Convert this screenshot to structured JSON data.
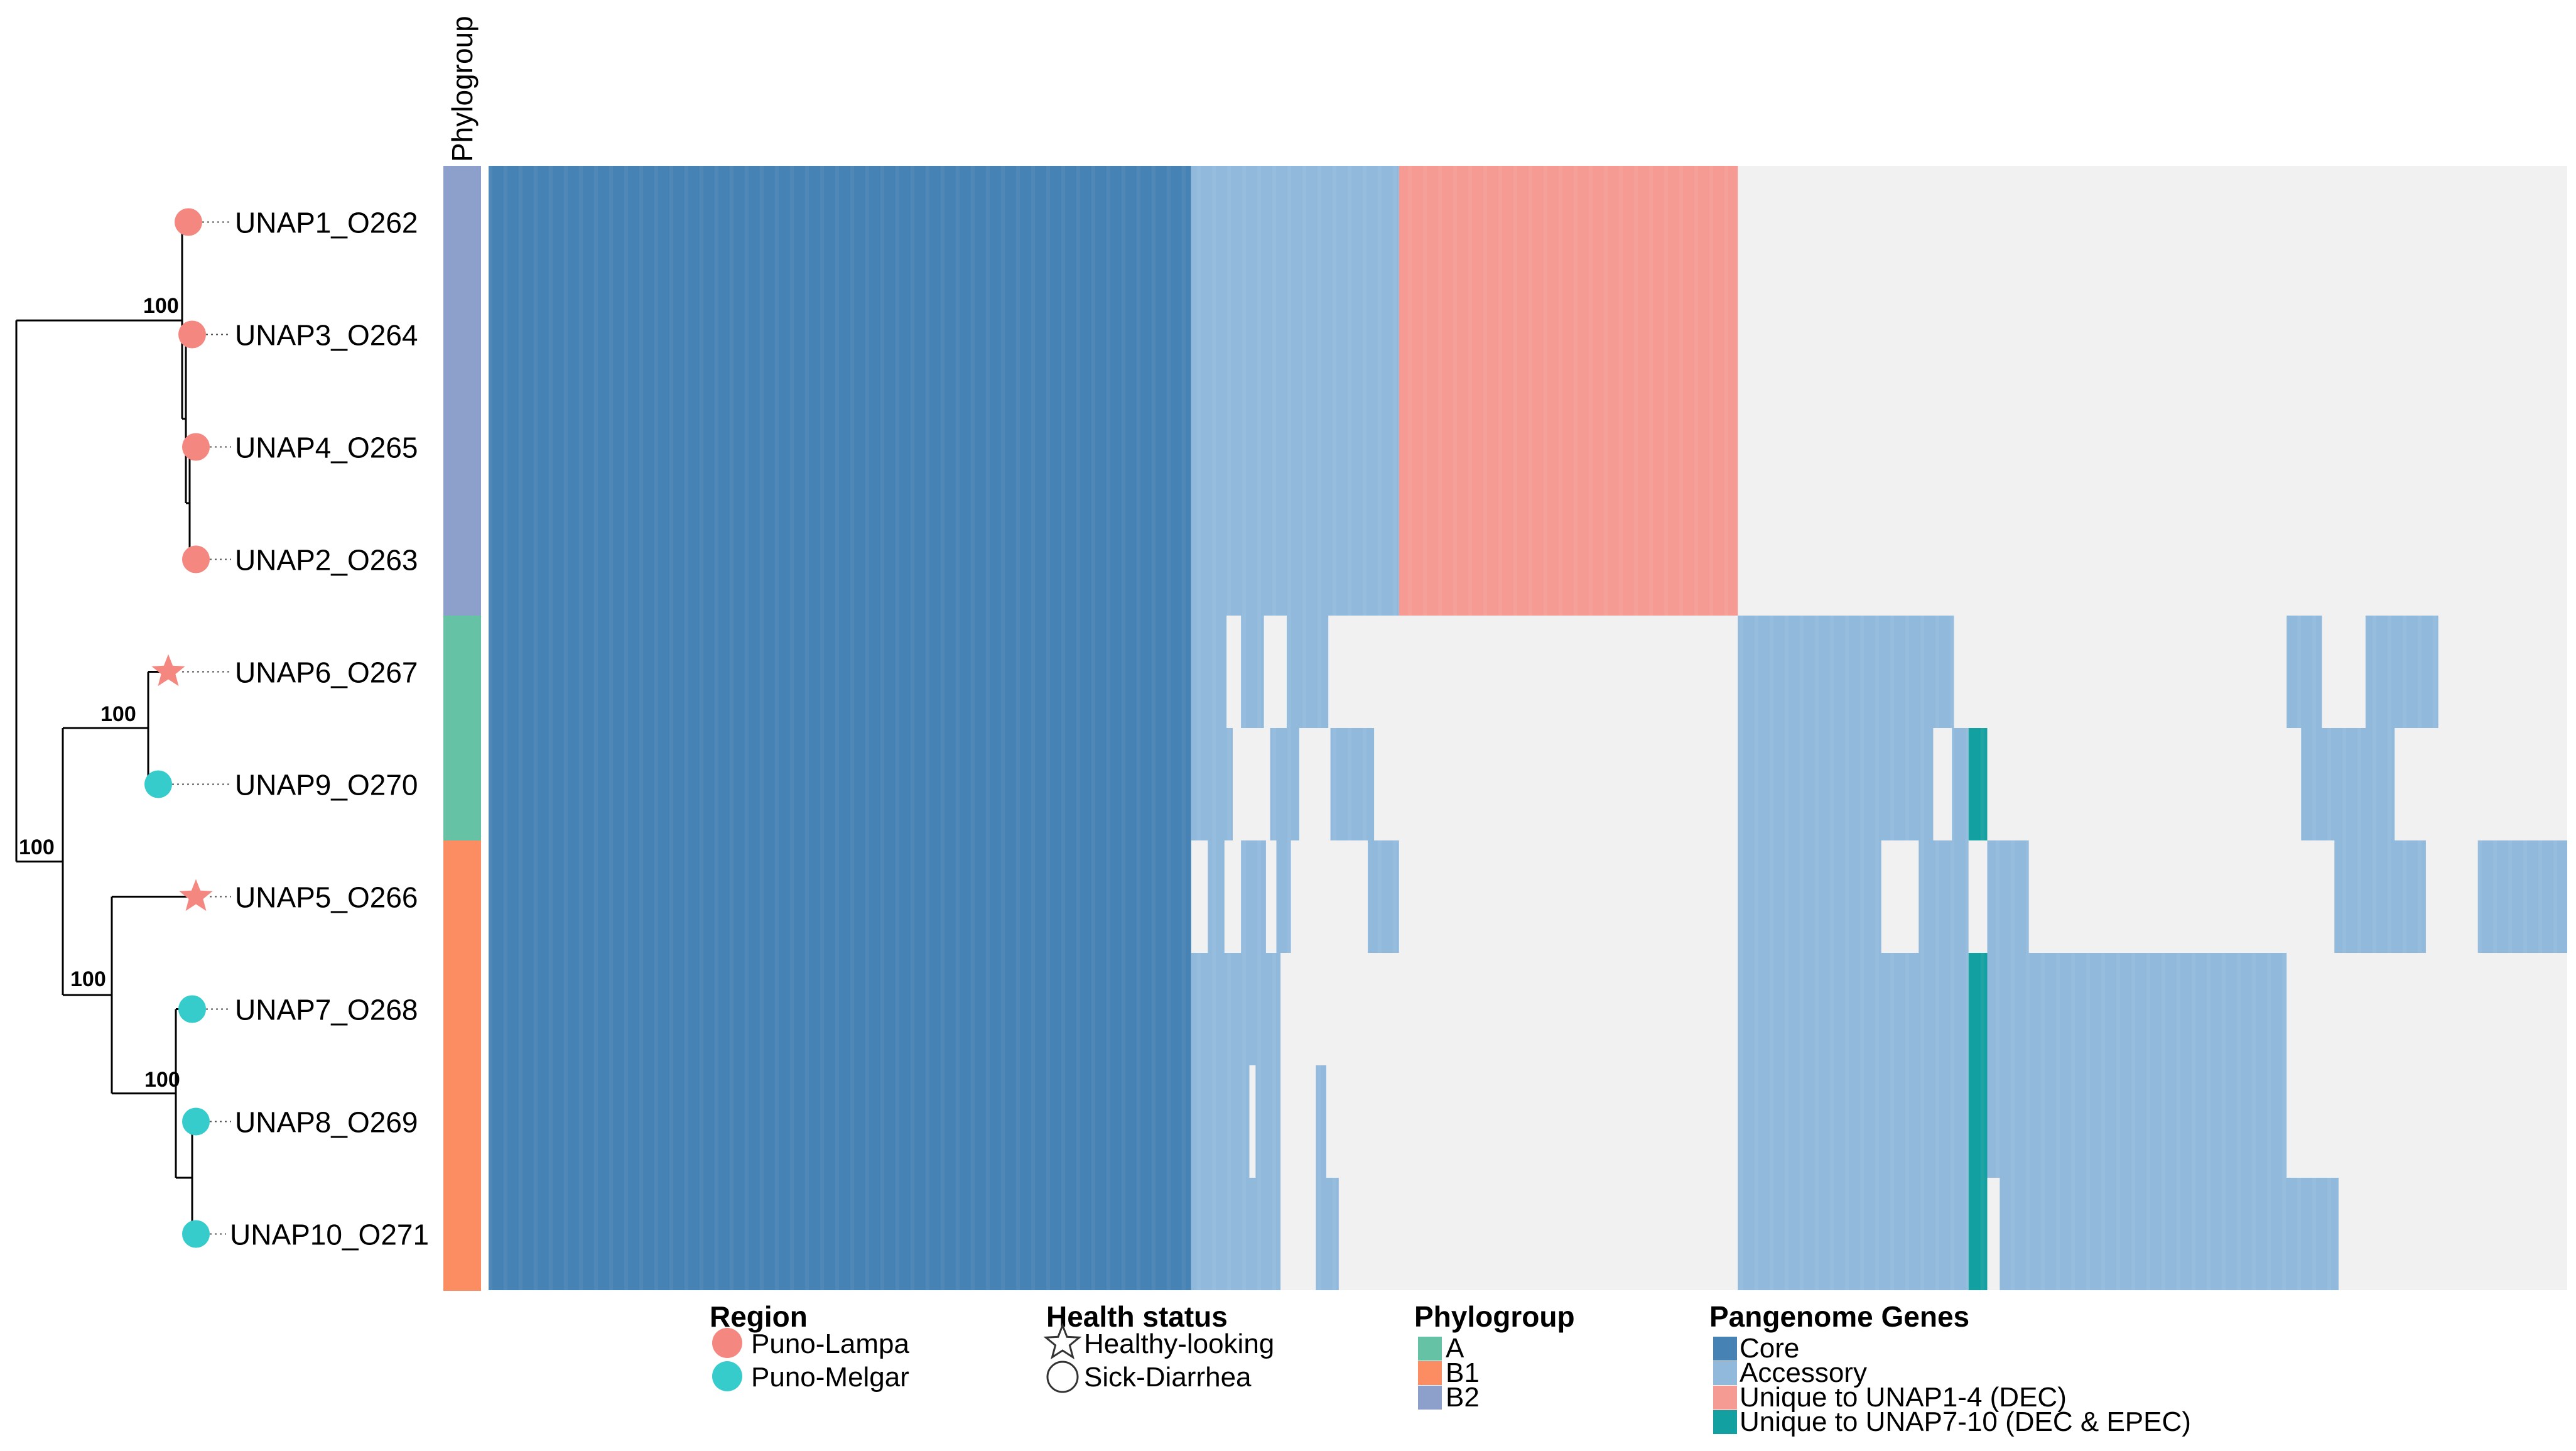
{
  "chart_data": {
    "type": "heatmap",
    "title": "",
    "strip_title": "Phylogroup",
    "bootstrap_value": "100",
    "colors": {
      "core": "#4682b4",
      "accessory": "#91b9dc",
      "unique_1_4": "#f59b93",
      "unique_7_10": "#13a0a0",
      "absent": "#f1f1f1",
      "region_lampa": "#f4877f",
      "region_melgar": "#36cccc",
      "phylo_A": "#66c2a5",
      "phylo_B1": "#fc8d62",
      "phylo_B2": "#8da0cb",
      "tree": "#000000"
    },
    "strains": [
      {
        "label": "UNAP1_O262",
        "region": "Puno-Lampa",
        "health": "Sick-Diarrhea",
        "phylogroup": "B2"
      },
      {
        "label": "UNAP3_O264",
        "region": "Puno-Lampa",
        "health": "Sick-Diarrhea",
        "phylogroup": "B2"
      },
      {
        "label": "UNAP4_O265",
        "region": "Puno-Lampa",
        "health": "Sick-Diarrhea",
        "phylogroup": "B2"
      },
      {
        "label": "UNAP2_O263",
        "region": "Puno-Lampa",
        "health": "Sick-Diarrhea",
        "phylogroup": "B2"
      },
      {
        "label": "UNAP6_O267",
        "region": "Puno-Lampa",
        "health": "Healthy-looking",
        "phylogroup": "A"
      },
      {
        "label": "UNAP9_O270",
        "region": "Puno-Melgar",
        "health": "Sick-Diarrhea",
        "phylogroup": "A"
      },
      {
        "label": "UNAP5_O266",
        "region": "Puno-Lampa",
        "health": "Healthy-looking",
        "phylogroup": "B1"
      },
      {
        "label": "UNAP7_O268",
        "region": "Puno-Melgar",
        "health": "Sick-Diarrhea",
        "phylogroup": "B1"
      },
      {
        "label": "UNAP8_O269",
        "region": "Puno-Melgar",
        "health": "Sick-Diarrhea",
        "phylogroup": "B1"
      },
      {
        "label": "UNAP10_O271",
        "region": "Puno-Melgar",
        "health": "Sick-Diarrhea",
        "phylogroup": "B1"
      }
    ],
    "gene_axis": {
      "min": 0,
      "max": 100,
      "unit": "percent of pangenome columns"
    },
    "presence_blocks": [
      {
        "rows": [
          0,
          9
        ],
        "from": 0,
        "to": 33.8,
        "category": "core"
      },
      {
        "rows": [
          0,
          3
        ],
        "from": 33.8,
        "to": 43.8,
        "category": "accessory"
      },
      {
        "rows": [
          0,
          3
        ],
        "from": 43.8,
        "to": 60.1,
        "category": "unique_1_4"
      },
      {
        "rows": [
          4,
          4
        ],
        "from": 33.8,
        "to": 35.5,
        "category": "accessory"
      },
      {
        "rows": [
          4,
          4
        ],
        "from": 36.2,
        "to": 37.3,
        "category": "accessory"
      },
      {
        "rows": [
          4,
          4
        ],
        "from": 38.4,
        "to": 40.4,
        "category": "accessory"
      },
      {
        "rows": [
          4,
          4
        ],
        "from": 60.1,
        "to": 70.5,
        "category": "accessory"
      },
      {
        "rows": [
          4,
          4
        ],
        "from": 86.5,
        "to": 88.2,
        "category": "accessory"
      },
      {
        "rows": [
          4,
          4
        ],
        "from": 90.3,
        "to": 93.8,
        "category": "accessory"
      },
      {
        "rows": [
          5,
          5
        ],
        "from": 33.8,
        "to": 35.8,
        "category": "accessory"
      },
      {
        "rows": [
          5,
          5
        ],
        "from": 37.6,
        "to": 39.0,
        "category": "accessory"
      },
      {
        "rows": [
          5,
          5
        ],
        "from": 40.5,
        "to": 42.6,
        "category": "accessory"
      },
      {
        "rows": [
          5,
          5
        ],
        "from": 60.1,
        "to": 69.5,
        "category": "accessory"
      },
      {
        "rows": [
          5,
          5
        ],
        "from": 70.4,
        "to": 71.2,
        "category": "accessory"
      },
      {
        "rows": [
          5,
          5
        ],
        "from": 71.2,
        "to": 72.1,
        "category": "unique_7_10"
      },
      {
        "rows": [
          5,
          5
        ],
        "from": 87.2,
        "to": 91.7,
        "category": "accessory"
      },
      {
        "rows": [
          6,
          6
        ],
        "from": 34.6,
        "to": 35.4,
        "category": "accessory"
      },
      {
        "rows": [
          6,
          6
        ],
        "from": 36.2,
        "to": 37.4,
        "category": "accessory"
      },
      {
        "rows": [
          6,
          6
        ],
        "from": 37.9,
        "to": 38.6,
        "category": "accessory"
      },
      {
        "rows": [
          6,
          6
        ],
        "from": 42.3,
        "to": 43.8,
        "category": "accessory"
      },
      {
        "rows": [
          6,
          6
        ],
        "from": 60.1,
        "to": 67.0,
        "category": "accessory"
      },
      {
        "rows": [
          6,
          6
        ],
        "from": 68.8,
        "to": 71.2,
        "category": "accessory"
      },
      {
        "rows": [
          6,
          6
        ],
        "from": 72.1,
        "to": 74.1,
        "category": "accessory"
      },
      {
        "rows": [
          6,
          6
        ],
        "from": 88.8,
        "to": 93.2,
        "category": "accessory"
      },
      {
        "rows": [
          6,
          6
        ],
        "from": 95.7,
        "to": 100,
        "category": "accessory"
      },
      {
        "rows": [
          7,
          7
        ],
        "from": 33.8,
        "to": 38.1,
        "category": "accessory"
      },
      {
        "rows": [
          7,
          7
        ],
        "from": 60.1,
        "to": 71.2,
        "category": "accessory"
      },
      {
        "rows": [
          7,
          7
        ],
        "from": 71.2,
        "to": 72.1,
        "category": "unique_7_10"
      },
      {
        "rows": [
          7,
          7
        ],
        "from": 72.1,
        "to": 86.5,
        "category": "accessory"
      },
      {
        "rows": [
          8,
          8
        ],
        "from": 33.8,
        "to": 36.6,
        "category": "accessory"
      },
      {
        "rows": [
          8,
          8
        ],
        "from": 36.9,
        "to": 38.1,
        "category": "accessory"
      },
      {
        "rows": [
          8,
          8
        ],
        "from": 39.8,
        "to": 40.3,
        "category": "accessory"
      },
      {
        "rows": [
          8,
          8
        ],
        "from": 60.1,
        "to": 71.2,
        "category": "accessory"
      },
      {
        "rows": [
          8,
          8
        ],
        "from": 71.2,
        "to": 72.1,
        "category": "unique_7_10"
      },
      {
        "rows": [
          8,
          8
        ],
        "from": 72.1,
        "to": 86.5,
        "category": "accessory"
      },
      {
        "rows": [
          9,
          9
        ],
        "from": 33.8,
        "to": 38.1,
        "category": "accessory"
      },
      {
        "rows": [
          9,
          9
        ],
        "from": 39.8,
        "to": 40.9,
        "category": "accessory"
      },
      {
        "rows": [
          9,
          9
        ],
        "from": 60.1,
        "to": 71.2,
        "category": "accessory"
      },
      {
        "rows": [
          9,
          9
        ],
        "from": 71.2,
        "to": 72.1,
        "category": "unique_7_10"
      },
      {
        "rows": [
          9,
          9
        ],
        "from": 72.7,
        "to": 89.0,
        "category": "accessory"
      }
    ],
    "legends": {
      "region": {
        "title": "Region",
        "items": [
          "Puno-Lampa",
          "Puno-Melgar"
        ]
      },
      "health": {
        "title": "Health status",
        "items": [
          "Healthy-looking",
          "Sick-Diarrhea"
        ]
      },
      "phylogroup": {
        "title": "Phylogroup",
        "items": [
          "A",
          "B1",
          "B2"
        ]
      },
      "genes": {
        "title": "Pangenome Genes",
        "items": [
          "Core",
          "Accessory",
          "Unique to UNAP1-4 (DEC)",
          "Unique to UNAP7-10 (DEC & EPEC)"
        ]
      }
    }
  }
}
